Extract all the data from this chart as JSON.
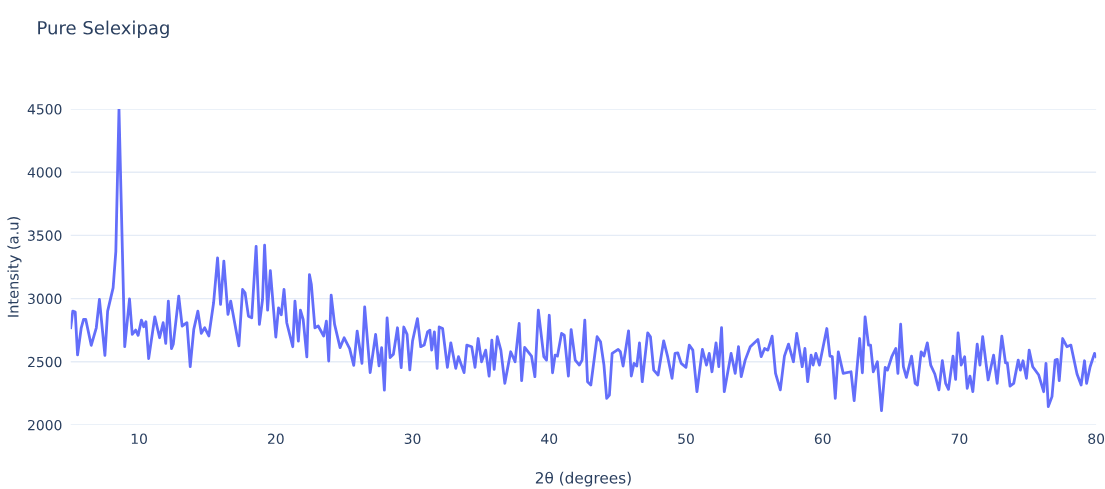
{
  "chart_data": {
    "type": "line",
    "title": "Pure Selexipag",
    "xlabel": "2θ (degrees)",
    "ylabel": "Intensity (a.u)",
    "xlim": [
      5,
      80
    ],
    "ylim": [
      2000,
      4500
    ],
    "xticks": [
      10,
      20,
      30,
      40,
      50,
      60,
      70,
      80
    ],
    "yticks": [
      2000,
      2500,
      3000,
      3500,
      4000,
      4500
    ],
    "grid": "y",
    "line_style": "solid",
    "marker": "none",
    "series": [
      {
        "color": "#636efa",
        "x": [
          5.0,
          5.15,
          5.33,
          5.5,
          5.77,
          5.94,
          6.1,
          6.5,
          6.87,
          7.1,
          7.5,
          7.7,
          8.1,
          8.3,
          8.53,
          8.78,
          8.95,
          9.3,
          9.5,
          9.75,
          9.93,
          10.17,
          10.34,
          10.5,
          10.7,
          11.15,
          11.5,
          11.76,
          11.95,
          12.14,
          12.37,
          12.5,
          12.9,
          13.15,
          13.5,
          13.74,
          14.0,
          14.3,
          14.55,
          14.8,
          15.1,
          15.45,
          15.74,
          15.96,
          16.2,
          16.5,
          16.7,
          17.3,
          17.57,
          17.75,
          18.0,
          18.24,
          18.56,
          18.8,
          19.03,
          19.18,
          19.4,
          19.6,
          20.0,
          20.2,
          20.4,
          20.6,
          20.8,
          21.24,
          21.4,
          21.65,
          21.8,
          22.0,
          22.27,
          22.46,
          22.6,
          22.86,
          23.1,
          23.5,
          23.7,
          23.87,
          24.05,
          24.3,
          24.7,
          25.0,
          25.4,
          25.7,
          25.95,
          26.3,
          26.5,
          26.9,
          27.3,
          27.55,
          27.74,
          27.94,
          28.14,
          28.36,
          28.6,
          28.9,
          29.17,
          29.36,
          29.6,
          29.8,
          30.0,
          30.36,
          30.6,
          30.85,
          31.1,
          31.27,
          31.4,
          31.6,
          31.8,
          31.95,
          32.2,
          32.55,
          32.8,
          33.16,
          33.36,
          33.77,
          33.97,
          34.33,
          34.57,
          34.8,
          35.05,
          35.35,
          35.6,
          35.8,
          35.97,
          36.2,
          36.46,
          36.75,
          37.18,
          37.5,
          37.8,
          37.98,
          38.2,
          38.7,
          38.95,
          39.2,
          39.6,
          39.8,
          40.0,
          40.24,
          40.43,
          40.6,
          40.9,
          41.1,
          41.4,
          41.6,
          41.9,
          42.2,
          42.4,
          42.6,
          42.8,
          43.04,
          43.5,
          43.75,
          44.0,
          44.2,
          44.4,
          44.6,
          45.04,
          45.2,
          45.4,
          45.8,
          46.0,
          46.2,
          46.4,
          46.6,
          46.8,
          47.2,
          47.4,
          47.64,
          47.96,
          48.37,
          48.66,
          48.98,
          49.2,
          49.4,
          49.65,
          50.0,
          50.24,
          50.5,
          50.8,
          51.2,
          51.5,
          51.7,
          51.9,
          52.2,
          52.4,
          52.6,
          52.8,
          53.3,
          53.6,
          53.84,
          54.04,
          54.33,
          54.7,
          55.26,
          55.5,
          55.75,
          55.99,
          56.3,
          56.55,
          56.9,
          57.2,
          57.5,
          57.86,
          58.1,
          58.5,
          58.7,
          58.9,
          59.15,
          59.3,
          59.5,
          59.76,
          60.3,
          60.53,
          60.7,
          60.92,
          61.14,
          61.5,
          62.07,
          62.3,
          62.7,
          62.9,
          63.1,
          63.35,
          63.5,
          63.7,
          64.0,
          64.3,
          64.57,
          64.74,
          65.05,
          65.35,
          65.5,
          65.7,
          65.9,
          66.12,
          66.5,
          66.76,
          66.93,
          67.2,
          67.4,
          67.65,
          67.9,
          68.2,
          68.5,
          68.75,
          68.99,
          69.2,
          69.53,
          69.72,
          69.9,
          70.13,
          70.38,
          70.57,
          70.77,
          70.98,
          71.3,
          71.5,
          71.7,
          72.1,
          72.5,
          72.76,
          73.1,
          73.37,
          73.5,
          73.7,
          73.97,
          74.3,
          74.46,
          74.65,
          74.9,
          75.1,
          75.36,
          75.8,
          76.16,
          76.33,
          76.5,
          76.77,
          77.0,
          77.16,
          77.3,
          77.55,
          77.86,
          78.15,
          78.6,
          78.9,
          79.15,
          79.3,
          79.56,
          79.88,
          80.0
        ],
        "values": [
          2769,
          2901,
          2893,
          2554,
          2769,
          2835,
          2835,
          2630,
          2769,
          2993,
          2551,
          2901,
          3085,
          3374,
          4500,
          3374,
          2619,
          2998,
          2717,
          2751,
          2709,
          2830,
          2777,
          2817,
          2525,
          2856,
          2690,
          2809,
          2646,
          2980,
          2604,
          2638,
          3019,
          2783,
          2809,
          2462,
          2756,
          2901,
          2725,
          2769,
          2704,
          2967,
          3322,
          2954,
          3296,
          2875,
          2980,
          2625,
          3072,
          3046,
          2861,
          2848,
          3414,
          2796,
          2993,
          3422,
          2909,
          3222,
          2696,
          2927,
          2872,
          3072,
          2809,
          2619,
          2980,
          2664,
          2909,
          2835,
          2538,
          3190,
          3111,
          2769,
          2783,
          2704,
          2822,
          2506,
          3027,
          2796,
          2612,
          2690,
          2604,
          2472,
          2743,
          2488,
          2935,
          2414,
          2717,
          2467,
          2612,
          2275,
          2848,
          2533,
          2559,
          2769,
          2454,
          2775,
          2717,
          2435,
          2664,
          2842,
          2619,
          2632,
          2737,
          2750,
          2592,
          2737,
          2448,
          2776,
          2763,
          2456,
          2650,
          2448,
          2540,
          2414,
          2632,
          2619,
          2456,
          2684,
          2500,
          2592,
          2387,
          2671,
          2440,
          2698,
          2592,
          2329,
          2579,
          2500,
          2803,
          2350,
          2613,
          2545,
          2382,
          2908,
          2540,
          2513,
          2868,
          2413,
          2553,
          2545,
          2724,
          2711,
          2387,
          2755,
          2513,
          2474,
          2513,
          2829,
          2342,
          2316,
          2698,
          2658,
          2474,
          2211,
          2237,
          2566,
          2598,
          2579,
          2466,
          2745,
          2387,
          2487,
          2466,
          2650,
          2342,
          2729,
          2698,
          2434,
          2395,
          2666,
          2540,
          2369,
          2566,
          2571,
          2487,
          2456,
          2632,
          2592,
          2263,
          2598,
          2474,
          2566,
          2421,
          2650,
          2461,
          2771,
          2263,
          2566,
          2408,
          2619,
          2382,
          2513,
          2619,
          2677,
          2540,
          2605,
          2592,
          2703,
          2408,
          2277,
          2545,
          2640,
          2500,
          2724,
          2461,
          2605,
          2342,
          2553,
          2474,
          2566,
          2474,
          2763,
          2545,
          2540,
          2211,
          2579,
          2408,
          2421,
          2193,
          2684,
          2413,
          2855,
          2632,
          2632,
          2421,
          2500,
          2114,
          2456,
          2434,
          2540,
          2605,
          2408,
          2797,
          2461,
          2377,
          2545,
          2329,
          2316,
          2579,
          2545,
          2650,
          2474,
          2403,
          2277,
          2508,
          2329,
          2282,
          2545,
          2361,
          2729,
          2474,
          2540,
          2290,
          2387,
          2263,
          2640,
          2474,
          2698,
          2356,
          2553,
          2329,
          2703,
          2492,
          2492,
          2308,
          2329,
          2513,
          2434,
          2508,
          2369,
          2592,
          2461,
          2395,
          2263,
          2487,
          2145,
          2224,
          2513,
          2519,
          2350,
          2684,
          2619,
          2632,
          2403,
          2316,
          2508,
          2329,
          2461,
          2566,
          2540
        ]
      }
    ]
  }
}
